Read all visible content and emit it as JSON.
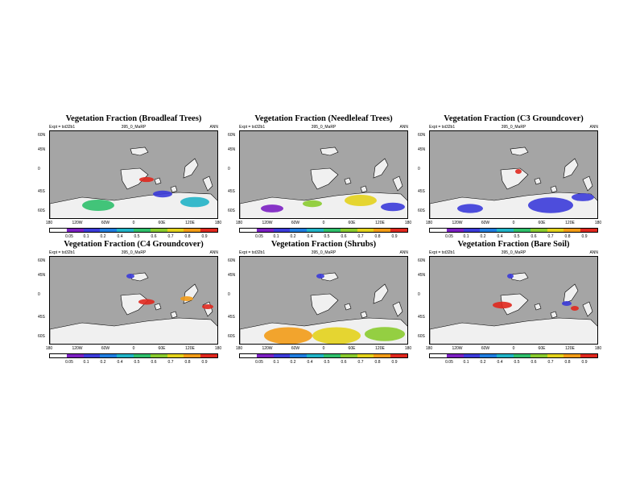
{
  "common": {
    "expt_label": "Expt = tst32b1",
    "run_label": "395_0_MaRP",
    "season": "ANN",
    "lat_ticks": [
      "60N",
      "45N",
      "0",
      "45S",
      "60S"
    ],
    "lon_ticks": [
      "180",
      "120W",
      "60W",
      "0",
      "60E",
      "120E",
      "180"
    ],
    "colorbar_labels": [
      "0.05",
      "0.1",
      "0.2",
      "0.4",
      "0.5",
      "0.6",
      "0.7",
      "0.8",
      "0.9"
    ],
    "colors": {
      "ocean": "#a5a5a5",
      "zero_land": "#f0f0f0",
      "scale": [
        "#ffffff",
        "#7b1fc2",
        "#3b3bd9",
        "#1f7de0",
        "#21b3c7",
        "#2fbf6b",
        "#8acb2f",
        "#e3d21c",
        "#f29b17",
        "#e0281e"
      ]
    }
  },
  "panels": [
    {
      "title": "Vegetation Fraction (Broadleaf Trees)"
    },
    {
      "title": "Vegetation Fraction (Needleleaf Trees)"
    },
    {
      "title": "Vegetation Fraction (C3 Groundcover)"
    },
    {
      "title": "Vegetation Fraction (C4 Groundcover)"
    },
    {
      "title": "Vegetation Fraction (Shrubs)"
    },
    {
      "title": "Vegetation Fraction (Bare Soil)"
    }
  ]
}
